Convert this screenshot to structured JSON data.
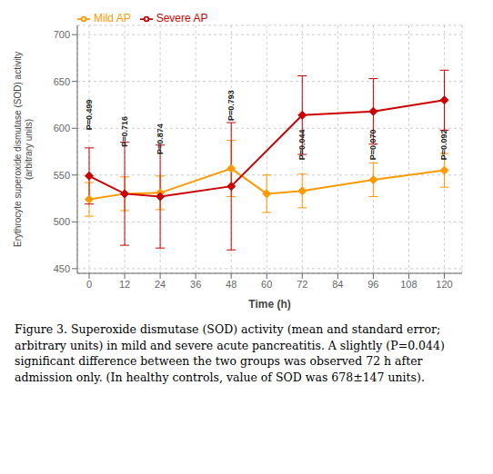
{
  "chart_data": {
    "type": "line",
    "xlabel": "Time (h)",
    "ylabel": "Erythrocyte superoxide dismutase (SOD) activity\n(arbitrary units)",
    "series": [
      {
        "name": "Mild AP",
        "color": "#FF9900",
        "marker": "diamond",
        "x": [
          0,
          12,
          24,
          48,
          60,
          72,
          96,
          120
        ],
        "values": [
          524,
          530,
          531,
          557,
          530,
          533,
          545,
          555
        ],
        "error": [
          18,
          18,
          18,
          30,
          20,
          18,
          18,
          18
        ]
      },
      {
        "name": "Severe AP",
        "color": "#CC0000",
        "marker": "diamond",
        "x": [
          0,
          12,
          24,
          48,
          72,
          96,
          120
        ],
        "values": [
          549,
          530,
          527,
          538,
          614,
          618,
          630
        ],
        "error": [
          30,
          55,
          55,
          68,
          42,
          35,
          32
        ]
      }
    ],
    "annotations": [
      {
        "x": 0,
        "y": 598,
        "text": "P=0.499"
      },
      {
        "x": 12,
        "y": 580,
        "text": "P=0.716"
      },
      {
        "x": 24,
        "y": 572,
        "text": "P=0.874"
      },
      {
        "x": 48,
        "y": 608,
        "text": "P=0.793"
      },
      {
        "x": 72,
        "y": 566,
        "text": "P=0.044"
      },
      {
        "x": 96,
        "y": 566,
        "text": "P=0.070"
      },
      {
        "x": 120,
        "y": 566,
        "text": "P=0.092"
      }
    ],
    "xlim": [
      -4,
      126
    ],
    "xticks": [
      0,
      12,
      24,
      36,
      48,
      60,
      72,
      84,
      96,
      108,
      120
    ],
    "ylim": [
      445,
      710
    ],
    "yticks": [
      450,
      500,
      550,
      600,
      650,
      700
    ],
    "grid": true,
    "legend": "upper left",
    "caption": "Figure 3. Superoxide dismutase (SOD) activity (mean and standard error; arbitrary units) in mild and severe acute pancreatitis. A slightly (P=0.044) significant difference between the two groups was observed 72 h after admission only. (In healthy controls, value of SOD was 678±147 units)."
  }
}
